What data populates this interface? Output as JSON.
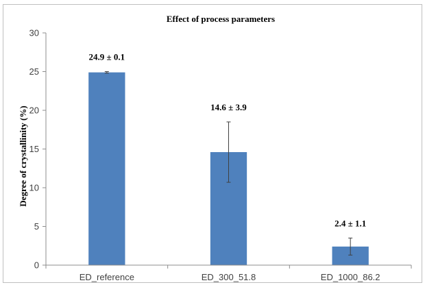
{
  "chart_data": {
    "type": "bar",
    "title": "Effect of process parameters",
    "ylabel": "Degree of crystallinity (%)",
    "xlabel": "",
    "categories": [
      "ED_reference",
      "ED_300_51.8",
      "ED_1000_86.2"
    ],
    "values": [
      24.9,
      14.6,
      2.4
    ],
    "errors": [
      0.1,
      3.9,
      1.1
    ],
    "data_labels": [
      "24.9 ± 0.1",
      "14.6 ± 3.9",
      "2.4 ± 1.1"
    ],
    "ylim": [
      0,
      30
    ],
    "yticks": [
      0,
      5,
      10,
      15,
      20,
      25,
      30
    ],
    "grid": false,
    "legend": "none",
    "bar_color": "#4f81bd"
  }
}
